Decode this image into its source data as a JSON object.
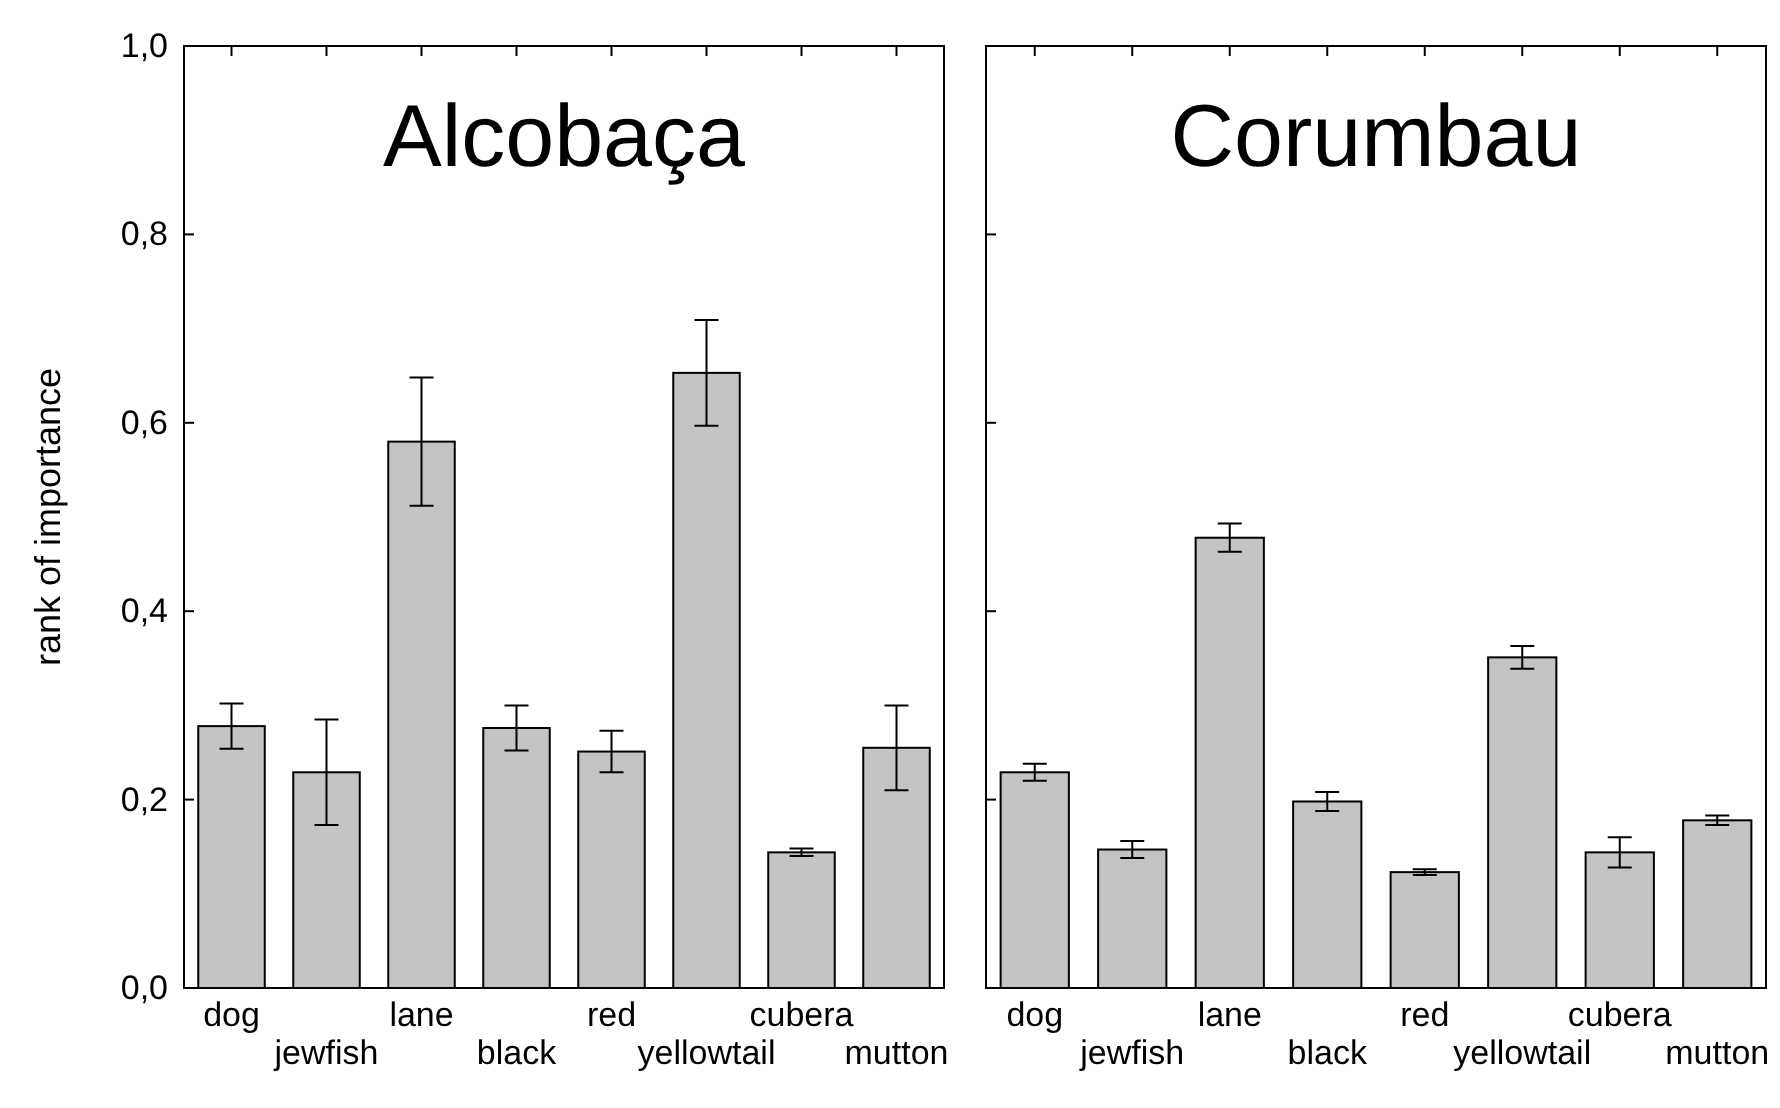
{
  "chart_data": [
    {
      "type": "bar",
      "title": "Alcobaça",
      "ylabel": "rank of importance",
      "categories": [
        "dog",
        "jewfish",
        "lane",
        "black",
        "red",
        "yellowtail",
        "cubera",
        "mutton"
      ],
      "values": [
        0.278,
        0.229,
        0.58,
        0.276,
        0.251,
        0.653,
        0.144,
        0.255
      ],
      "errors": [
        0.024,
        0.056,
        0.068,
        0.024,
        0.022,
        0.056,
        0.004,
        0.045
      ],
      "color": "#c4c4c4",
      "ylim": [
        0,
        1
      ],
      "yticks": [
        {
          "value": 0,
          "label": "0,0"
        },
        {
          "value": 0.2,
          "label": "0,2"
        },
        {
          "value": 0.4,
          "label": "0,4"
        },
        {
          "value": 0.6,
          "label": "0,6"
        },
        {
          "value": 0.8,
          "label": "0,8"
        },
        {
          "value": 1,
          "label": "1,0"
        }
      ]
    },
    {
      "type": "bar",
      "title": "Corumbau",
      "categories": [
        "dog",
        "jewfish",
        "lane",
        "black",
        "red",
        "yellowtail",
        "cubera",
        "mutton"
      ],
      "values": [
        0.229,
        0.147,
        0.478,
        0.198,
        0.123,
        0.351,
        0.144,
        0.178
      ],
      "errors": [
        0.009,
        0.009,
        0.015,
        0.01,
        0.003,
        0.012,
        0.016,
        0.005
      ],
      "color": "#c4c4c4",
      "ylim": [
        0,
        1
      ],
      "yticks": [
        {
          "value": 0,
          "label": null
        },
        {
          "value": 0.2,
          "label": null
        },
        {
          "value": 0.4,
          "label": null
        },
        {
          "value": 0.6,
          "label": null
        },
        {
          "value": 0.8,
          "label": null
        },
        {
          "value": 1,
          "label": null
        }
      ],
      "tick_labels": "x"
    }
  ]
}
